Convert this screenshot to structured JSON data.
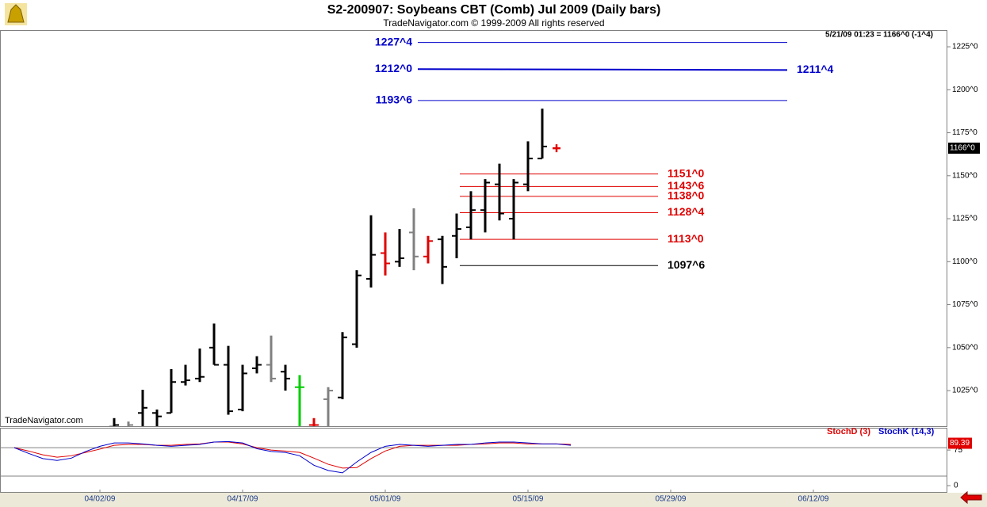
{
  "chart_data": {
    "type": "ohlc",
    "title": "S2-200907:  Soybeans CBT (Comb) Jul 2009  (Daily bars)",
    "subtitle": "TradeNavigator.com © 1999-2009 All rights reserved",
    "quote": "5/21/09 01:23 = 1166^0 (-1^4)",
    "watermark": "TradeNavigator.com",
    "color": "#000000",
    "categories": [
      null,
      null,
      null,
      null,
      null,
      null,
      "04/02/09",
      null,
      null,
      null,
      null,
      null,
      null,
      null,
      null,
      null,
      "04/17/09",
      null,
      null,
      null,
      null,
      null,
      null,
      null,
      null,
      null,
      "05/01/09",
      null,
      null,
      null,
      null,
      null,
      null,
      null,
      null,
      null,
      "05/15/09",
      null,
      null,
      null,
      null,
      null,
      null,
      null,
      null,
      null,
      "05/29/09",
      null,
      null,
      null,
      null,
      null,
      null,
      null,
      null,
      null,
      "06/12/09"
    ],
    "open": [
      null,
      null,
      null,
      null,
      null,
      null,
      null,
      1004,
      1003,
      1012,
      1012,
      1012,
      1030,
      1032,
      1050,
      1040,
      1014,
      1038,
      1040,
      1036,
      1027,
      1005,
      1020,
      1021,
      1052,
      1090,
      1105,
      1100,
      1117,
      1103,
      1113,
      1115,
      1120,
      1130,
      1145,
      1125,
      1145,
      1160,
      null,
      null,
      null,
      null,
      null,
      null,
      null,
      null,
      null,
      null,
      null,
      null,
      null,
      null,
      null,
      null,
      null,
      null,
      null
    ],
    "high": [
      null,
      null,
      null,
      null,
      null,
      null,
      null,
      1009,
      1007,
      1025.5,
      1014,
      1037.5,
      1040,
      1049.5,
      1064,
      1051,
      1040,
      1045,
      1057,
      1040,
      1034,
      1009,
      1027,
      1059,
      1095,
      1127,
      1117,
      1119,
      1131,
      1115,
      1115,
      1128,
      1141,
      1148,
      1157,
      1148,
      1170,
      1189,
      null,
      null,
      null,
      null,
      null,
      null,
      null,
      null,
      null,
      null,
      null,
      null,
      null,
      null,
      null,
      null,
      null,
      null,
      null
    ],
    "low": [
      null,
      null,
      null,
      null,
      null,
      null,
      null,
      1000,
      1000,
      1000,
      1000,
      1012,
      1028,
      1030,
      1040,
      1011,
      1013,
      1035,
      1030,
      1025,
      1000,
      1000,
      1000,
      1020,
      1050,
      1085,
      1092,
      1097,
      1095,
      1099,
      1087,
      1102,
      1113,
      1117,
      1124,
      1113,
      1141,
      1160,
      null,
      null,
      null,
      null,
      null,
      null,
      null,
      null,
      null,
      null,
      null,
      null,
      null,
      null,
      null,
      null,
      null,
      null,
      null
    ],
    "close": [
      null,
      null,
      null,
      null,
      null,
      null,
      null,
      1005,
      1005,
      1015,
      1010,
      1030,
      1031,
      1033,
      1040,
      1013,
      1035,
      1040,
      1032,
      1032,
      1027,
      1005,
      1025,
      1056,
      1092,
      1104,
      1099,
      1102,
      1103,
      1112,
      1097,
      1119,
      1130,
      1146,
      1128,
      1146,
      1160,
      1167,
      null,
      null,
      null,
      null,
      null,
      null,
      null,
      null,
      null,
      null,
      null,
      null,
      null,
      null,
      null,
      null,
      null,
      null,
      null
    ],
    "bar_colors": [
      null,
      null,
      null,
      null,
      null,
      null,
      null,
      null,
      "#808080",
      null,
      null,
      null,
      null,
      null,
      null,
      null,
      null,
      null,
      "#808080",
      null,
      "#00cc00",
      "#e00000",
      "#808080",
      null,
      null,
      null,
      "#e00000",
      null,
      "#808080",
      "#e00000",
      null,
      null,
      null,
      null,
      null,
      null,
      null,
      null,
      null,
      null,
      null,
      null,
      null,
      null,
      null,
      null,
      null,
      null,
      null,
      null,
      null,
      null,
      null,
      null,
      null,
      null,
      null
    ],
    "last_price": {
      "value": 1166,
      "label": "1166^0"
    },
    "ylim": [
      1004.3,
      1234.7
    ],
    "yticks": [
      {
        "value": 1025,
        "label": "1025^0"
      },
      {
        "value": 1050,
        "label": "1050^0"
      },
      {
        "value": 1075,
        "label": "1075^0"
      },
      {
        "value": 1100,
        "label": "1100^0"
      },
      {
        "value": 1125,
        "label": "1125^0"
      },
      {
        "value": 1150,
        "label": "1150^0"
      },
      {
        "value": 1175,
        "label": "1175^0"
      },
      {
        "value": 1200,
        "label": "1200^0"
      },
      {
        "value": 1225,
        "label": "1225^0"
      }
    ],
    "levels": [
      {
        "value": 1227.5,
        "label": "1227^4",
        "color": "#0000cc"
      },
      {
        "value": 1212,
        "label": "1212^0",
        "end_value": 1211.5,
        "end_label": "1211^4",
        "color": "#0000cc"
      },
      {
        "value": 1193.75,
        "label": "1193^6",
        "color": "#0000cc"
      },
      {
        "value": 1151,
        "label": "1151^0",
        "color": "#e00000"
      },
      {
        "value": 1143.75,
        "label": "1143^6",
        "color": "#e00000"
      },
      {
        "value": 1138,
        "label": "1138^0",
        "color": "#e00000"
      },
      {
        "value": 1128.5,
        "label": "1128^4",
        "color": "#e00000"
      },
      {
        "value": 1113,
        "label": "1113^0",
        "color": "#e00000"
      },
      {
        "value": 1097.75,
        "label": "1097^6",
        "color": "#000000"
      }
    ],
    "indicator": {
      "ylim": [
        -15,
        122
      ],
      "yticks": [
        0,
        75
      ],
      "levels": [
        80,
        20
      ],
      "last_value": 89.39,
      "series": [
        {
          "name": "StochD (3)",
          "color": "#e00000",
          "values": [
            80,
            73,
            65,
            60,
            63,
            70,
            77,
            85,
            87,
            87,
            85,
            85,
            87,
            88,
            92,
            92,
            88,
            80,
            75,
            73,
            70,
            58,
            45,
            37,
            38,
            57,
            73,
            83,
            85,
            85,
            85,
            85,
            87,
            88,
            90,
            90,
            88,
            88,
            88,
            87,
            null,
            null,
            null,
            null,
            null,
            null,
            null,
            null,
            null,
            null,
            null,
            null,
            null,
            null,
            null,
            null,
            null
          ]
        },
        {
          "name": "StochK (14,3)",
          "color": "#0000cc",
          "values": [
            80,
            68,
            57,
            53,
            58,
            72,
            83,
            90,
            90,
            88,
            85,
            83,
            85,
            87,
            92,
            93,
            90,
            78,
            72,
            70,
            63,
            43,
            32,
            27,
            50,
            70,
            83,
            87,
            85,
            83,
            85,
            87,
            87,
            90,
            92,
            92,
            90,
            88,
            88,
            85,
            null,
            null,
            null,
            null,
            null,
            null,
            null,
            null,
            null,
            null,
            null,
            null,
            null,
            null,
            null,
            null,
            null
          ]
        }
      ]
    }
  }
}
